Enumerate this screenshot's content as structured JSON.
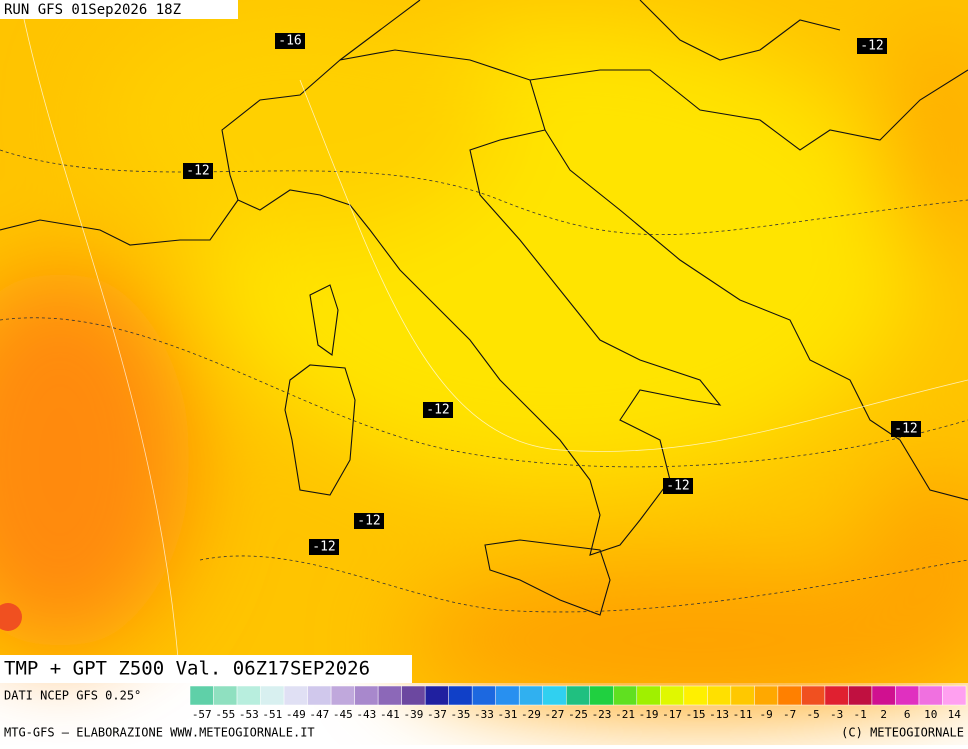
{
  "header": {
    "run": "RUN GFS 01Sep2026 18Z"
  },
  "map": {
    "contour_labels": [
      "-16",
      "-12",
      "-12",
      "-12",
      "-12",
      "-12",
      "-12",
      "-12"
    ]
  },
  "footer": {
    "product": "TMP + GPT Z500 Val. 06Z17SEP2026",
    "source": "DATI NCEP GFS 0.25°",
    "credit_left": "MTG-GFS – ELABORAZIONE WWW.METEOGIORNALE.IT",
    "credit_right": "(C) METEOGIORNALE"
  },
  "colorbar": {
    "labels": [
      "-57",
      "-55",
      "-53",
      "-51",
      "-49",
      "-47",
      "-45",
      "-43",
      "-41",
      "-39",
      "-37",
      "-35",
      "-33",
      "-31",
      "-29",
      "-27",
      "-25",
      "-23",
      "-21",
      "-19",
      "-17",
      "-15",
      "-13",
      "-11",
      "-9",
      "-7",
      "-5",
      "-3",
      "-1",
      "2",
      "6",
      "10",
      "14"
    ],
    "colors": [
      "#5fd0a8",
      "#8fe0c0",
      "#b8eede",
      "#d8f0f0",
      "#e0e0f4",
      "#d0c8ec",
      "#c0a8dc",
      "#a888cc",
      "#8c68b8",
      "#6c48a0",
      "#2020a0",
      "#1040c8",
      "#1c68e0",
      "#2890f0",
      "#30b0f0",
      "#30d0f0",
      "#20c080",
      "#20d040",
      "#60e020",
      "#a0f000",
      "#e0f800",
      "#fff000",
      "#ffe000",
      "#ffc800",
      "#ffa800",
      "#ff8000",
      "#f05020",
      "#e02030",
      "#c01040",
      "#d01090",
      "#e030c0",
      "#f070e0",
      "#ffa0f0"
    ]
  }
}
